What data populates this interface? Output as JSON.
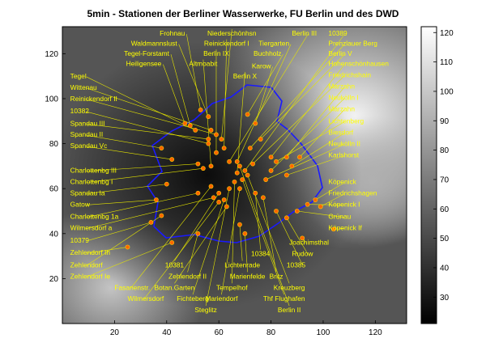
{
  "chart_data": {
    "type": "scatter",
    "title": "5min - Stationen der Berliner Wasserwerke, FU Berlin und des DWD",
    "xlim": [
      0,
      132
    ],
    "ylim": [
      0,
      132
    ],
    "x_ticks": [
      20,
      40,
      60,
      80,
      100,
      120
    ],
    "y_ticks": [
      20,
      40,
      60,
      80,
      100,
      120
    ],
    "colorbar": {
      "min": 21,
      "max": 122,
      "ticks": [
        30,
        40,
        50,
        60,
        70,
        80,
        90,
        100,
        110,
        120
      ]
    },
    "marker_color": "#ff6600",
    "label_color": "#ffff00",
    "leader_color": "#e6e600",
    "boundary_color": "#1a1aff",
    "stations": [
      {
        "name": "Frohnau",
        "x": 53,
        "y": 95,
        "lx": 47,
        "ly": 128,
        "anchor": "end"
      },
      {
        "name": "Waldmannslust",
        "x": 56,
        "y": 92,
        "lx": 44,
        "ly": 123.5,
        "anchor": "end"
      },
      {
        "name": "Tegel-Forstamt",
        "x": 49,
        "y": 88,
        "lx": 41,
        "ly": 119,
        "anchor": "end"
      },
      {
        "name": "Heiligensee",
        "x": 47,
        "y": 89,
        "lx": 38,
        "ly": 114.5,
        "anchor": "end"
      },
      {
        "name": "Tegel",
        "x": 51,
        "y": 86,
        "lx": 3,
        "ly": 109,
        "anchor": "start"
      },
      {
        "name": "Wittenau",
        "x": 57,
        "y": 86,
        "lx": 3,
        "ly": 104,
        "anchor": "start"
      },
      {
        "name": "Reinickendorf II",
        "x": 59,
        "y": 84,
        "lx": 3,
        "ly": 99,
        "anchor": "start"
      },
      {
        "name": "10382",
        "x": 56,
        "y": 80,
        "lx": 3,
        "ly": 93.5,
        "anchor": "start"
      },
      {
        "name": "Spandau III",
        "x": 56,
        "y": 82,
        "lx": 3,
        "ly": 88,
        "anchor": "start"
      },
      {
        "name": "Spandau II",
        "x": 38,
        "y": 78,
        "lx": 3,
        "ly": 83,
        "anchor": "start"
      },
      {
        "name": "Spandau Vc",
        "x": 42,
        "y": 73,
        "lx": 3,
        "ly": 78,
        "anchor": "start"
      },
      {
        "name": "Niederschönhsn",
        "x": 61,
        "y": 82,
        "lx": 65,
        "ly": 128,
        "anchor": "middle"
      },
      {
        "name": "Reinickendorf I",
        "x": 62,
        "y": 78,
        "lx": 63,
        "ly": 123.5,
        "anchor": "middle"
      },
      {
        "name": "Berlin IX",
        "x": 59,
        "y": 76,
        "lx": 59,
        "ly": 119,
        "anchor": "middle"
      },
      {
        "name": "Altmoabit",
        "x": 57,
        "y": 70,
        "lx": 54,
        "ly": 114.5,
        "anchor": "middle"
      },
      {
        "name": "Berlin III",
        "x": 64,
        "y": 72,
        "lx": 88,
        "ly": 128,
        "anchor": "start"
      },
      {
        "name": "10389",
        "x": 70,
        "y": 68,
        "lx": 102,
        "ly": 128,
        "anchor": "start"
      },
      {
        "name": "Tiergarten",
        "x": 67,
        "y": 72,
        "lx": 87,
        "ly": 123.5,
        "anchor": "end"
      },
      {
        "name": "Prenzlauer Berg",
        "x": 72,
        "y": 78,
        "lx": 102,
        "ly": 123.5,
        "anchor": "start"
      },
      {
        "name": "Buchholz",
        "x": 71,
        "y": 93,
        "lx": 84,
        "ly": 119,
        "anchor": "end"
      },
      {
        "name": "Berlin V",
        "x": 76,
        "y": 82,
        "lx": 102,
        "ly": 119,
        "anchor": "start"
      },
      {
        "name": "Karow",
        "x": 74,
        "y": 89,
        "lx": 80,
        "ly": 113.5,
        "anchor": "end"
      },
      {
        "name": "Hohenschönhausen",
        "x": 80,
        "y": 74,
        "lx": 102,
        "ly": 114.5,
        "anchor": "start"
      },
      {
        "name": "Berlin X",
        "x": 67,
        "y": 67,
        "lx": 70,
        "ly": 109,
        "anchor": "middle"
      },
      {
        "name": "Friedrichshain",
        "x": 73,
        "y": 71,
        "lx": 102,
        "ly": 109.5,
        "anchor": "start"
      },
      {
        "name": "Marzahn",
        "x": 86,
        "y": 74,
        "lx": 102,
        "ly": 104.5,
        "anchor": "start"
      },
      {
        "name": "Neukölln I",
        "x": 80,
        "y": 68,
        "lx": 102,
        "ly": 99.5,
        "anchor": "start"
      },
      {
        "name": "Marzahn",
        "x": 91,
        "y": 74,
        "lx": 102,
        "ly": 94.5,
        "anchor": "start"
      },
      {
        "name": "Lichtenberg",
        "x": 82,
        "y": 72,
        "lx": 102,
        "ly": 89,
        "anchor": "start"
      },
      {
        "name": "Biesdorf",
        "x": 88,
        "y": 70,
        "lx": 102,
        "ly": 84,
        "anchor": "start"
      },
      {
        "name": "Neukölln II",
        "x": 78,
        "y": 64,
        "lx": 102,
        "ly": 79,
        "anchor": "start"
      },
      {
        "name": "Karlshorst",
        "x": 86,
        "y": 66,
        "lx": 102,
        "ly": 74,
        "anchor": "start"
      },
      {
        "name": "Charlottenbg III",
        "x": 52,
        "y": 71,
        "lx": 3,
        "ly": 67,
        "anchor": "start"
      },
      {
        "name": "Charlottenbg I",
        "x": 54,
        "y": 69,
        "lx": 3,
        "ly": 62,
        "anchor": "start"
      },
      {
        "name": "Spandau Ia",
        "x": 40,
        "y": 62,
        "lx": 3,
        "ly": 57,
        "anchor": "start"
      },
      {
        "name": "Gatow",
        "x": 36,
        "y": 55,
        "lx": 3,
        "ly": 52,
        "anchor": "start"
      },
      {
        "name": "Charlottenbg 1a",
        "x": 52,
        "y": 58,
        "lx": 3,
        "ly": 46.5,
        "anchor": "start"
      },
      {
        "name": "Wilmersdorf a",
        "x": 58,
        "y": 56,
        "lx": 3,
        "ly": 41.5,
        "anchor": "start"
      },
      {
        "name": "10379",
        "x": 34,
        "y": 45,
        "lx": 3,
        "ly": 36,
        "anchor": "start"
      },
      {
        "name": "Zehlendorf Ih",
        "x": 25,
        "y": 34,
        "lx": 3,
        "ly": 30.5,
        "anchor": "start"
      },
      {
        "name": "Zehlendorf",
        "x": 38,
        "y": 48,
        "lx": 3,
        "ly": 25,
        "anchor": "start"
      },
      {
        "name": "Zehlendorf Ie",
        "x": 42,
        "y": 36,
        "lx": 3,
        "ly": 20,
        "anchor": "start"
      },
      {
        "name": "Fasanenstr.",
        "x": 57,
        "y": 61,
        "lx": 20,
        "ly": 15,
        "anchor": "start"
      },
      {
        "name": "Wilmersdorf",
        "x": 60,
        "y": 54,
        "lx": 25,
        "ly": 10,
        "anchor": "start"
      },
      {
        "name": "10381",
        "x": 60,
        "y": 58,
        "lx": 43,
        "ly": 25,
        "anchor": "middle"
      },
      {
        "name": "Zehlendorf II",
        "x": 52,
        "y": 40,
        "lx": 48,
        "ly": 20,
        "anchor": "middle"
      },
      {
        "name": "Botan.Garten",
        "x": 63,
        "y": 52,
        "lx": 43,
        "ly": 15,
        "anchor": "middle"
      },
      {
        "name": "Fichteberg",
        "x": 62,
        "y": 55,
        "lx": 50,
        "ly": 10,
        "anchor": "middle"
      },
      {
        "name": "Steglitz",
        "x": 64,
        "y": 60,
        "lx": 55,
        "ly": 5,
        "anchor": "middle"
      },
      {
        "name": "Mariendorf",
        "x": 68,
        "y": 60,
        "lx": 61,
        "ly": 10,
        "anchor": "middle"
      },
      {
        "name": "Tempelhof",
        "x": 66,
        "y": 63,
        "lx": 65,
        "ly": 15,
        "anchor": "middle"
      },
      {
        "name": "Marienfelde",
        "x": 70,
        "y": 40,
        "lx": 71,
        "ly": 20,
        "anchor": "middle"
      },
      {
        "name": "Lichtenrade",
        "x": 68,
        "y": 44,
        "lx": 69,
        "ly": 25,
        "anchor": "middle"
      },
      {
        "name": "10384",
        "x": 74,
        "y": 58,
        "lx": 76,
        "ly": 30,
        "anchor": "middle"
      },
      {
        "name": "Joachimsthal",
        "x": 92,
        "y": 38,
        "lx": 87,
        "ly": 35,
        "anchor": "start"
      },
      {
        "name": "Rudow",
        "x": 86,
        "y": 47,
        "lx": 88,
        "ly": 30,
        "anchor": "start"
      },
      {
        "name": "10385",
        "x": 82,
        "y": 50,
        "lx": 86,
        "ly": 25,
        "anchor": "start"
      },
      {
        "name": "Britz",
        "x": 77,
        "y": 56,
        "lx": 82,
        "ly": 20,
        "anchor": "middle"
      },
      {
        "name": "Kreuzberg",
        "x": 71,
        "y": 66,
        "lx": 87,
        "ly": 15,
        "anchor": "middle"
      },
      {
        "name": "Thf Flughafen",
        "x": 69,
        "y": 64,
        "lx": 85,
        "ly": 10,
        "anchor": "middle"
      },
      {
        "name": "Berlin II",
        "x": 68,
        "y": 70,
        "lx": 87,
        "ly": 5,
        "anchor": "middle"
      },
      {
        "name": "Köpenick",
        "x": 97,
        "y": 55,
        "lx": 102,
        "ly": 62,
        "anchor": "start"
      },
      {
        "name": "Friedrichshagen",
        "x": 99,
        "y": 52,
        "lx": 102,
        "ly": 57,
        "anchor": "start"
      },
      {
        "name": "Köpenick I",
        "x": 94,
        "y": 53,
        "lx": 102,
        "ly": 52,
        "anchor": "start"
      },
      {
        "name": "Grünau",
        "x": 90,
        "y": 50,
        "lx": 102,
        "ly": 46.5,
        "anchor": "start"
      },
      {
        "name": "Köpenick If",
        "x": 104,
        "y": 42,
        "lx": 102,
        "ly": 41.5,
        "anchor": "start"
      }
    ]
  }
}
